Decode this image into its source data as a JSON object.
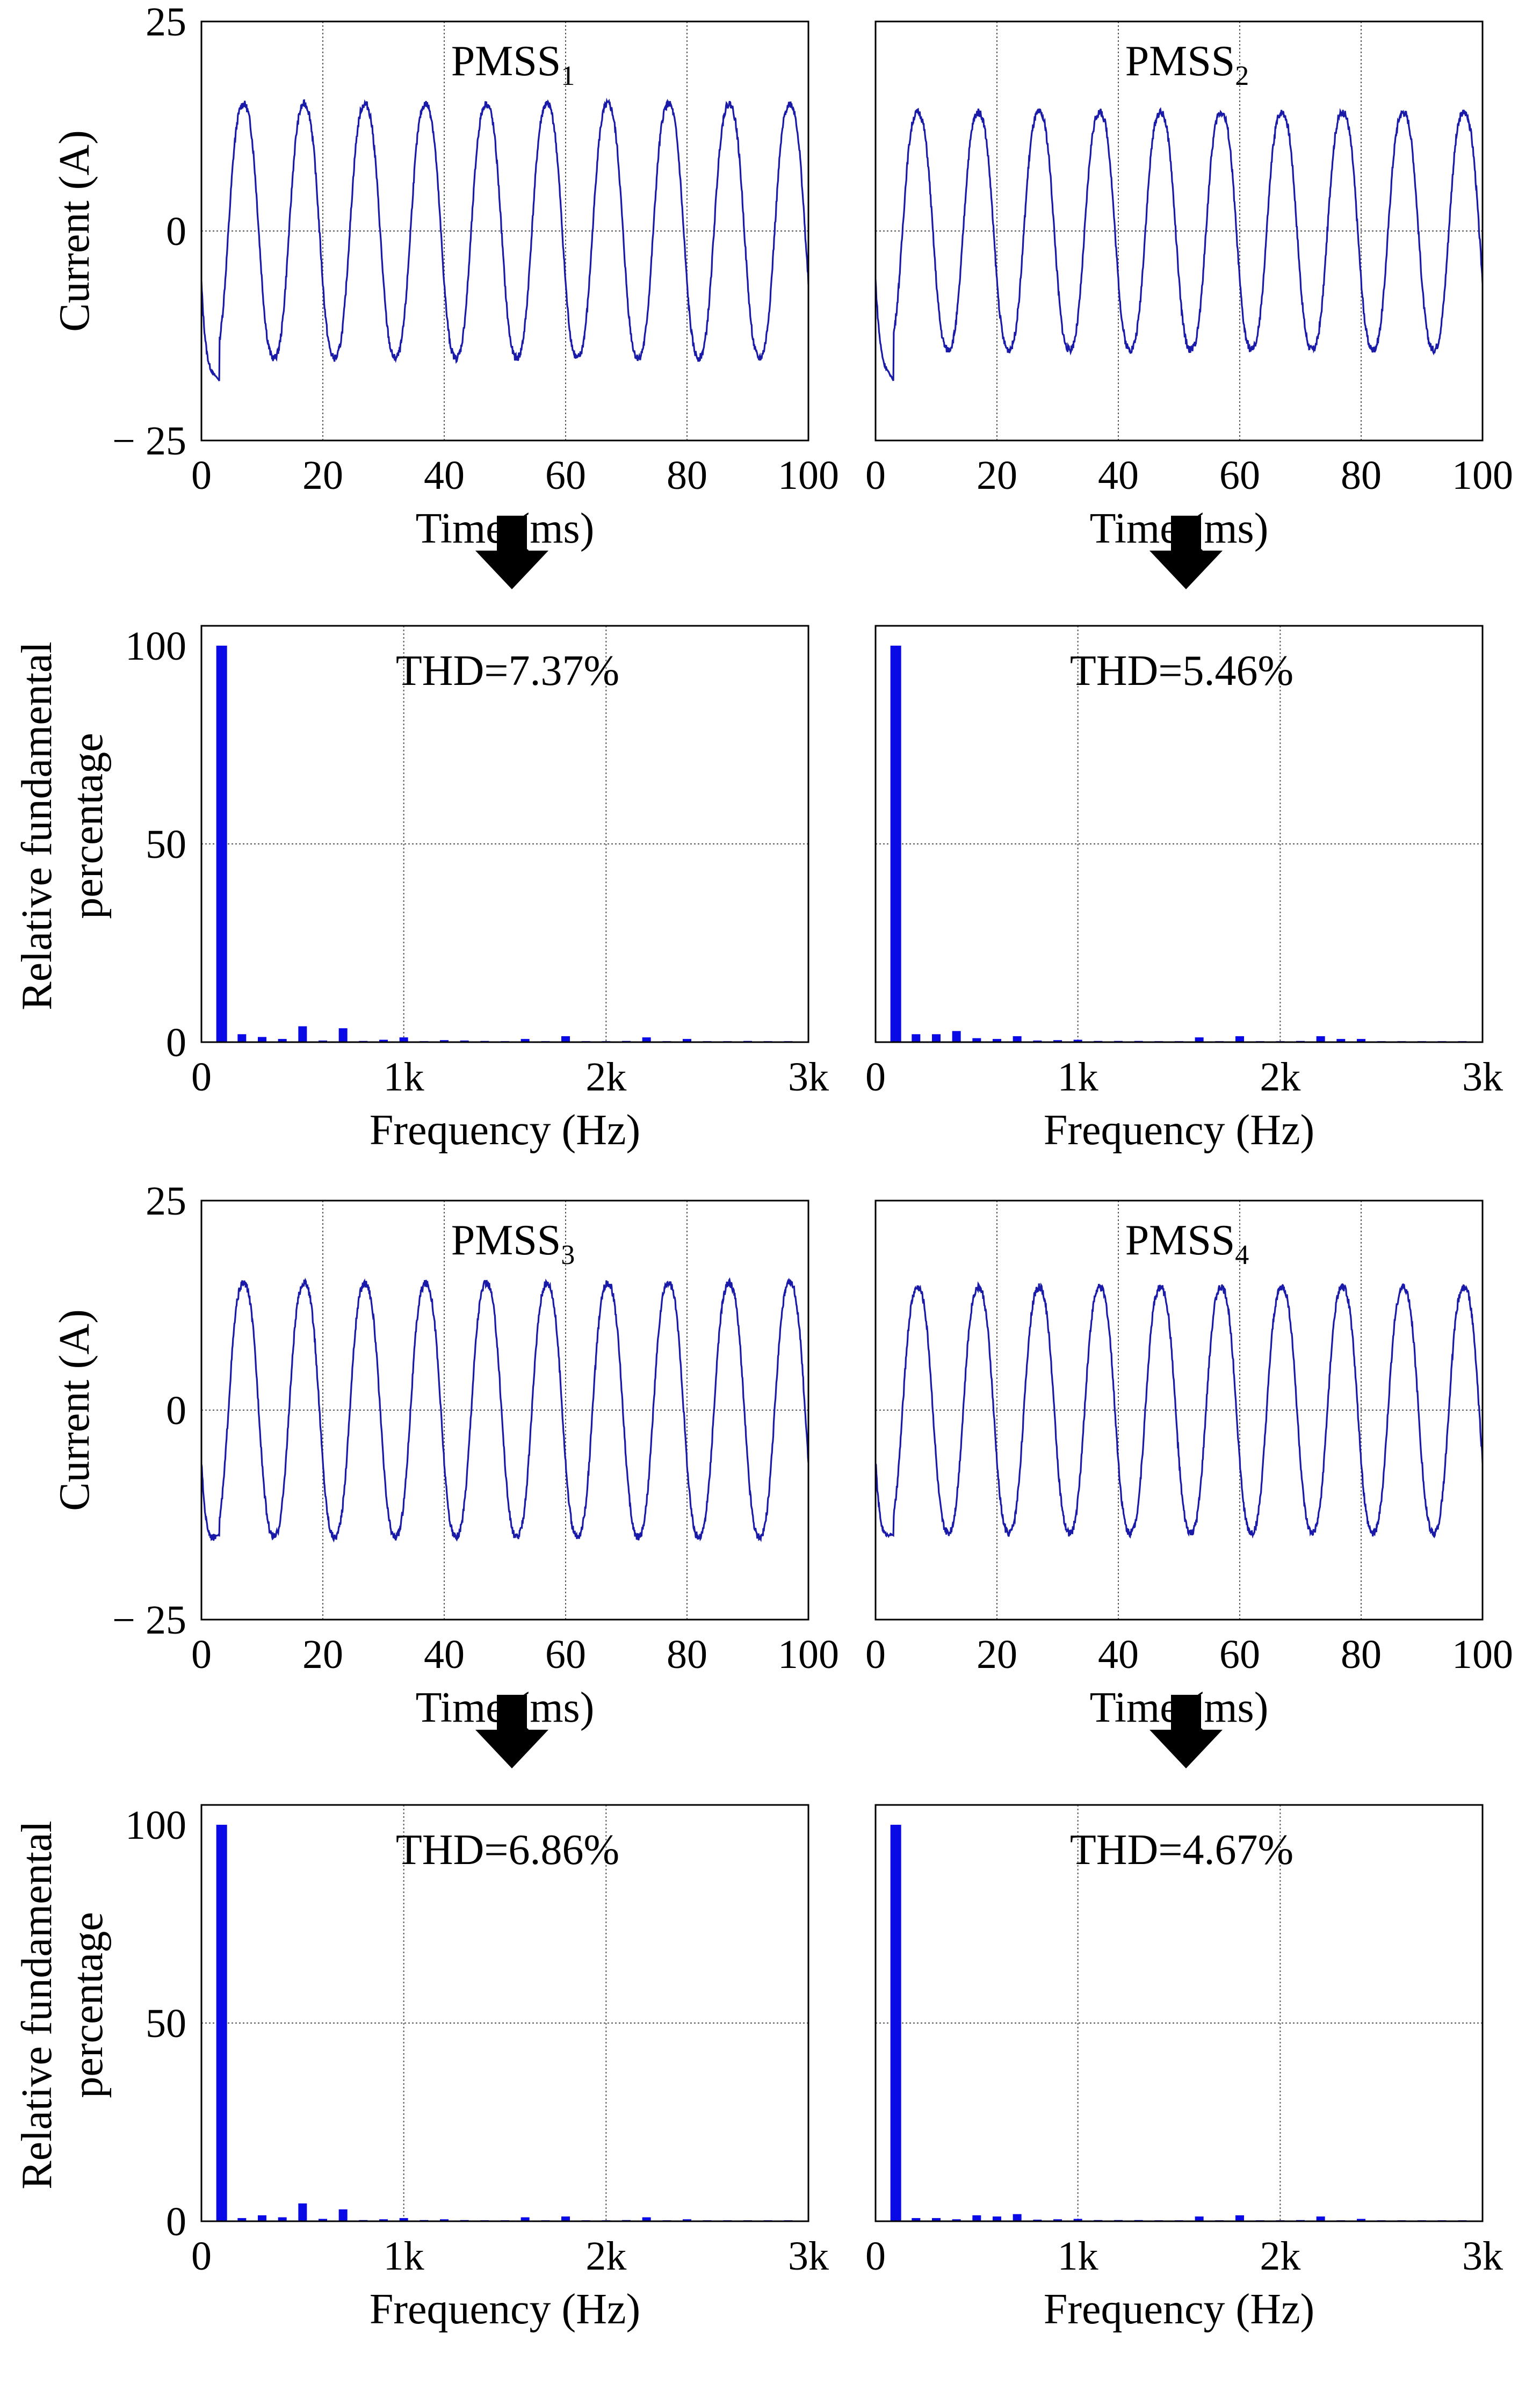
{
  "colors": {
    "line": "#1a1aa8",
    "bar": "#0a0ae6",
    "axis": "#000000",
    "grid": "#555555",
    "arrow": "#000000"
  },
  "chart_data": [
    {
      "type": "line",
      "id": "waveform-1",
      "title": "PMSS",
      "title_sub": "1",
      "xlabel": "Time (ms)",
      "ylabel": "Current (A)",
      "xlim": [
        0,
        100
      ],
      "ylim": [
        -25,
        25
      ],
      "xticks": [
        "0",
        "20",
        "40",
        "60",
        "80",
        "100"
      ],
      "yticks": [
        "25",
        "0",
        "− 25"
      ],
      "grid": true,
      "series": [
        {
          "name": "current",
          "frequency_hz": 100,
          "amplitude": 16,
          "phase_deg": 200,
          "initial_dip": -18
        }
      ]
    },
    {
      "type": "line",
      "id": "waveform-2",
      "title": "PMSS",
      "title_sub": "2",
      "xlabel": "Time (ms)",
      "ylabel": "",
      "xlim": [
        0,
        100
      ],
      "ylim": [
        -25,
        25
      ],
      "xticks": [
        "0",
        "20",
        "40",
        "60",
        "80",
        "100"
      ],
      "yticks": [],
      "grid": true,
      "series": [
        {
          "name": "current",
          "frequency_hz": 100,
          "amplitude": 15,
          "phase_deg": 200,
          "initial_dip": -18
        }
      ]
    },
    {
      "type": "bar",
      "id": "spectrum-1",
      "annotation": "THD=7.37%",
      "xlabel": "Frequency (Hz)",
      "ylabel": "Relative fundamental percentage",
      "xlim": [
        0,
        3000
      ],
      "ylim": [
        0,
        105
      ],
      "xticks": [
        "0",
        "1k",
        "2k",
        "3k"
      ],
      "yticks": [
        "100",
        "50",
        "0"
      ],
      "grid": true,
      "categories": [
        "100",
        "200",
        "300",
        "400",
        "500",
        "600",
        "700",
        "800",
        "900",
        "1000",
        "1100",
        "1200",
        "1300",
        "1400",
        "1500",
        "1600",
        "1700",
        "1800",
        "1900",
        "2000",
        "2100",
        "2200",
        "2300",
        "2400",
        "2500",
        "2600",
        "2700",
        "2800",
        "2900"
      ],
      "values": [
        100,
        2.0,
        1.3,
        0.8,
        4.0,
        0.4,
        3.5,
        0.3,
        0.6,
        1.2,
        0.2,
        0.5,
        0.4,
        0.3,
        0.2,
        0.8,
        0.2,
        1.5,
        0.2,
        0.2,
        0.3,
        1.2,
        0.2,
        0.8,
        0.2,
        0.2,
        0.3,
        0.2,
        0.2
      ]
    },
    {
      "type": "bar",
      "id": "spectrum-2",
      "annotation": "THD=5.46%",
      "xlabel": "Frequency (Hz)",
      "ylabel": "",
      "xlim": [
        0,
        3000
      ],
      "ylim": [
        0,
        105
      ],
      "xticks": [
        "0",
        "1k",
        "2k",
        "3k"
      ],
      "yticks": [],
      "grid": true,
      "categories": [
        "100",
        "200",
        "300",
        "400",
        "500",
        "600",
        "700",
        "800",
        "900",
        "1000",
        "1100",
        "1200",
        "1300",
        "1400",
        "1500",
        "1600",
        "1700",
        "1800",
        "1900",
        "2000",
        "2100",
        "2200",
        "2300",
        "2400",
        "2500",
        "2600",
        "2700",
        "2800",
        "2900"
      ],
      "values": [
        100,
        2.0,
        2.0,
        2.8,
        1.0,
        0.8,
        1.5,
        0.4,
        0.5,
        0.6,
        0.3,
        0.3,
        0.3,
        0.2,
        0.2,
        1.2,
        0.2,
        1.5,
        0.2,
        0.2,
        0.3,
        1.5,
        0.8,
        0.8,
        0.2,
        0.2,
        0.2,
        0.2,
        0.2
      ]
    },
    {
      "type": "line",
      "id": "waveform-3",
      "title": "PMSS",
      "title_sub": "3",
      "xlabel": "Time (ms)",
      "ylabel": "Current (A)",
      "xlim": [
        0,
        100
      ],
      "ylim": [
        -25,
        25
      ],
      "xticks": [
        "0",
        "20",
        "40",
        "60",
        "80",
        "100"
      ],
      "yticks": [
        "25",
        "0",
        "− 25"
      ],
      "grid": true,
      "series": [
        {
          "name": "current",
          "frequency_hz": 100,
          "amplitude": 16,
          "phase_deg": 200,
          "initial_dip": -15
        }
      ]
    },
    {
      "type": "line",
      "id": "waveform-4",
      "title": "PMSS",
      "title_sub": "4",
      "xlabel": "Time (ms)",
      "ylabel": "",
      "xlim": [
        0,
        100
      ],
      "ylim": [
        -25,
        25
      ],
      "xticks": [
        "0",
        "20",
        "40",
        "60",
        "80",
        "100"
      ],
      "yticks": [],
      "grid": true,
      "series": [
        {
          "name": "current",
          "frequency_hz": 100,
          "amplitude": 15.5,
          "phase_deg": 200,
          "initial_dip": -15
        }
      ]
    },
    {
      "type": "bar",
      "id": "spectrum-3",
      "annotation": "THD=6.86%",
      "xlabel": "Frequency (Hz)",
      "ylabel": "Relative fundamental percentage",
      "xlim": [
        0,
        3000
      ],
      "ylim": [
        0,
        105
      ],
      "xticks": [
        "0",
        "1k",
        "2k",
        "3k"
      ],
      "yticks": [
        "100",
        "50",
        "0"
      ],
      "grid": true,
      "categories": [
        "100",
        "200",
        "300",
        "400",
        "500",
        "600",
        "700",
        "800",
        "900",
        "1000",
        "1100",
        "1200",
        "1300",
        "1400",
        "1500",
        "1600",
        "1700",
        "1800",
        "1900",
        "2000",
        "2100",
        "2200",
        "2300",
        "2400",
        "2500",
        "2600",
        "2700",
        "2800",
        "2900"
      ],
      "values": [
        100,
        0.8,
        1.5,
        1.0,
        4.5,
        0.6,
        3.0,
        0.3,
        0.5,
        0.8,
        0.3,
        0.5,
        0.3,
        0.2,
        0.2,
        1.0,
        0.2,
        1.2,
        0.2,
        0.2,
        0.3,
        1.0,
        0.2,
        0.5,
        0.2,
        0.2,
        0.2,
        0.2,
        0.2
      ]
    },
    {
      "type": "bar",
      "id": "spectrum-4",
      "annotation": "THD=4.67%",
      "xlabel": "Frequency (Hz)",
      "ylabel": "",
      "xlim": [
        0,
        3000
      ],
      "ylim": [
        0,
        105
      ],
      "xticks": [
        "0",
        "1k",
        "2k",
        "3k"
      ],
      "yticks": [],
      "grid": true,
      "categories": [
        "100",
        "200",
        "300",
        "400",
        "500",
        "600",
        "700",
        "800",
        "900",
        "1000",
        "1100",
        "1200",
        "1300",
        "1400",
        "1500",
        "1600",
        "1700",
        "1800",
        "1900",
        "2000",
        "2100",
        "2200",
        "2300",
        "2400",
        "2500",
        "2600",
        "2700",
        "2800",
        "2900"
      ],
      "values": [
        100,
        0.8,
        0.8,
        0.5,
        1.5,
        1.2,
        1.8,
        0.4,
        0.5,
        0.6,
        0.3,
        0.3,
        0.3,
        0.2,
        0.2,
        1.2,
        0.2,
        1.5,
        0.2,
        0.2,
        0.3,
        1.2,
        0.2,
        0.6,
        0.2,
        0.2,
        0.2,
        0.2,
        0.2
      ]
    }
  ]
}
